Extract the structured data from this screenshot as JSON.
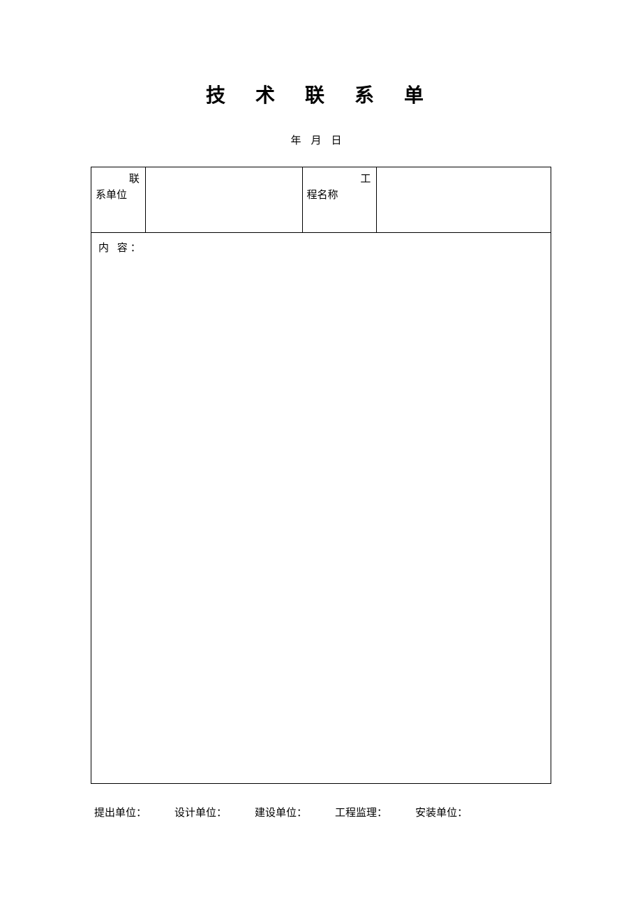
{
  "title": "技 术 联 系 单",
  "date": {
    "year_label": "年",
    "month_label": "月",
    "day_label": "日"
  },
  "header": {
    "contact_unit_first": "联",
    "contact_unit_rest": "系单位",
    "project_name_first": "工",
    "project_name_rest": "程名称",
    "contact_unit_value": "",
    "project_name_value": ""
  },
  "content": {
    "label": "内 容：",
    "value": ""
  },
  "footer": {
    "proposer": "提出单位：",
    "designer": "设计单位：",
    "builder": "建设单位：",
    "supervisor": "工程监理：",
    "installer": "安装单位："
  },
  "colors": {
    "background": "#ffffff",
    "text": "#000000",
    "border": "#000000"
  }
}
